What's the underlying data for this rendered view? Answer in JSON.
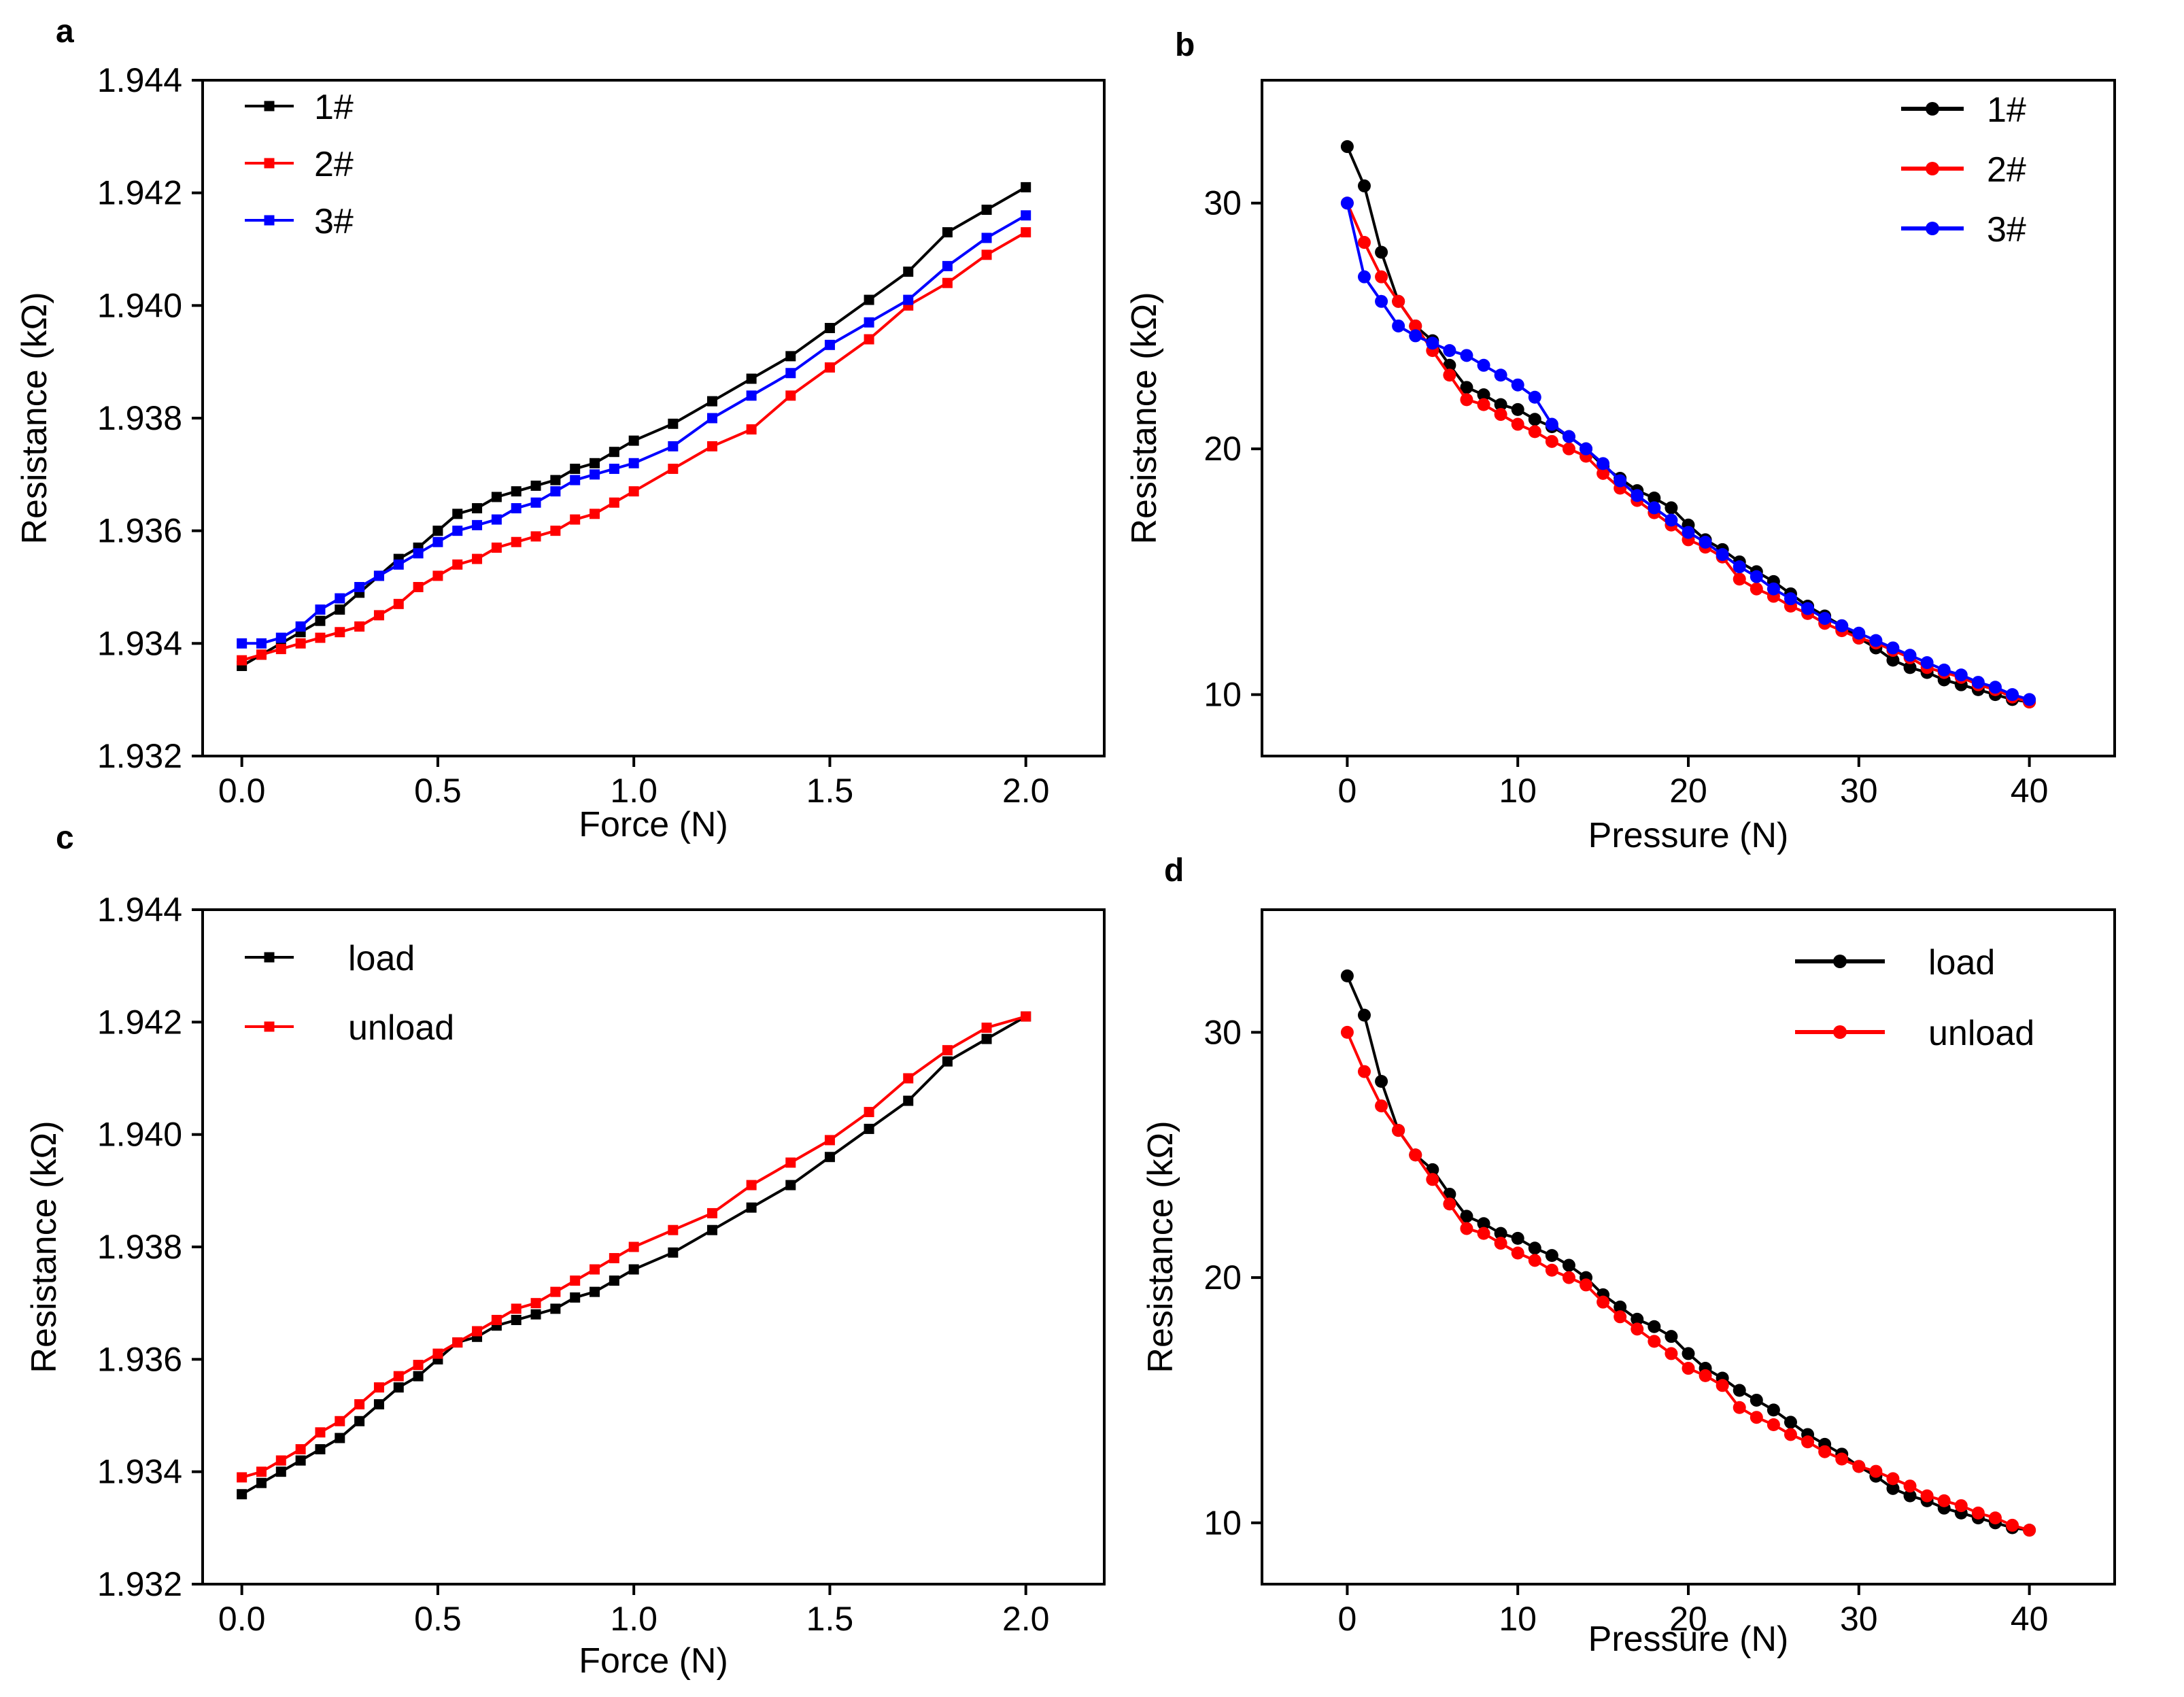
{
  "chart_data": [
    {
      "id": "a",
      "panel_label": "a",
      "type": "line",
      "marker": "square",
      "xlabel": "Force (N)",
      "ylabel": "Resistance (kΩ)",
      "xlim": [
        -0.1,
        2.2
      ],
      "ylim": [
        1.932,
        1.944
      ],
      "xticks": [
        0.0,
        0.5,
        1.0,
        1.5,
        2.0
      ],
      "xtick_labels": [
        "0.0",
        "0.5",
        "1.0",
        "1.5",
        "2.0"
      ],
      "yticks": [
        1.932,
        1.934,
        1.936,
        1.938,
        1.94,
        1.942,
        1.944
      ],
      "ytick_labels": [
        "1.932",
        "1.934",
        "1.936",
        "1.938",
        "1.940",
        "1.942",
        "1.944"
      ],
      "legend_position": "top-left",
      "x": [
        0.0,
        0.05,
        0.1,
        0.15,
        0.2,
        0.25,
        0.3,
        0.35,
        0.4,
        0.45,
        0.5,
        0.55,
        0.6,
        0.65,
        0.7,
        0.75,
        0.8,
        0.85,
        0.9,
        0.95,
        1.0,
        1.1,
        1.2,
        1.3,
        1.4,
        1.5,
        1.6,
        1.7,
        1.8,
        1.9,
        2.0
      ],
      "series": [
        {
          "name": "1#",
          "color": "#000000",
          "values": [
            1.9336,
            1.9338,
            1.934,
            1.9342,
            1.9344,
            1.9346,
            1.9349,
            1.9352,
            1.9355,
            1.9357,
            1.936,
            1.9363,
            1.9364,
            1.9366,
            1.9367,
            1.9368,
            1.9369,
            1.9371,
            1.9372,
            1.9374,
            1.9376,
            1.9379,
            1.9383,
            1.9387,
            1.9391,
            1.9396,
            1.9401,
            1.9406,
            1.9413,
            1.9417,
            1.9421
          ]
        },
        {
          "name": "2#",
          "color": "#ff0000",
          "values": [
            1.9337,
            1.9338,
            1.9339,
            1.934,
            1.9341,
            1.9342,
            1.9343,
            1.9345,
            1.9347,
            1.935,
            1.9352,
            1.9354,
            1.9355,
            1.9357,
            1.9358,
            1.9359,
            1.936,
            1.9362,
            1.9363,
            1.9365,
            1.9367,
            1.9371,
            1.9375,
            1.9378,
            1.9384,
            1.9389,
            1.9394,
            1.94,
            1.9404,
            1.9409,
            1.9413
          ]
        },
        {
          "name": "3#",
          "color": "#0000ff",
          "values": [
            1.934,
            1.934,
            1.9341,
            1.9343,
            1.9346,
            1.9348,
            1.935,
            1.9352,
            1.9354,
            1.9356,
            1.9358,
            1.936,
            1.9361,
            1.9362,
            1.9364,
            1.9365,
            1.9367,
            1.9369,
            1.937,
            1.9371,
            1.9372,
            1.9375,
            1.938,
            1.9384,
            1.9388,
            1.9393,
            1.9397,
            1.9401,
            1.9407,
            1.9412,
            1.9416
          ]
        }
      ]
    },
    {
      "id": "b",
      "panel_label": "b",
      "type": "line",
      "marker": "circle",
      "xlabel": "Pressure (N)",
      "ylabel": "Resistance (kΩ)",
      "xlim": [
        -5,
        45
      ],
      "ylim": [
        7.5,
        35
      ],
      "xticks": [
        0,
        10,
        20,
        30,
        40
      ],
      "xtick_labels": [
        "0",
        "10",
        "20",
        "30",
        "40"
      ],
      "yticks": [
        10,
        20,
        30
      ],
      "ytick_labels": [
        "10",
        "20",
        "30"
      ],
      "legend_position": "top-right",
      "x": [
        0,
        1,
        2,
        3,
        4,
        5,
        6,
        7,
        8,
        9,
        10,
        11,
        12,
        13,
        14,
        15,
        16,
        17,
        18,
        19,
        20,
        21,
        22,
        23,
        24,
        25,
        26,
        27,
        28,
        29,
        30,
        31,
        32,
        33,
        34,
        35,
        36,
        37,
        38,
        39,
        40
      ],
      "series": [
        {
          "name": "1#",
          "color": "#000000",
          "values": [
            32.3,
            30.7,
            28.0,
            26.0,
            25.0,
            24.4,
            23.4,
            22.5,
            22.2,
            21.8,
            21.6,
            21.2,
            20.9,
            20.5,
            20.0,
            19.3,
            18.8,
            18.3,
            18.0,
            17.6,
            16.9,
            16.3,
            15.9,
            15.4,
            15.0,
            14.6,
            14.1,
            13.6,
            13.2,
            12.8,
            12.3,
            11.9,
            11.4,
            11.1,
            10.9,
            10.6,
            10.4,
            10.2,
            10.0,
            9.8,
            9.7
          ]
        },
        {
          "name": "2#",
          "color": "#ff0000",
          "values": [
            30.0,
            28.4,
            27.0,
            26.0,
            25.0,
            24.0,
            23.0,
            22.0,
            21.8,
            21.4,
            21.0,
            20.7,
            20.3,
            20.0,
            19.7,
            19.0,
            18.4,
            17.9,
            17.4,
            16.9,
            16.3,
            16.0,
            15.6,
            14.7,
            14.3,
            14.0,
            13.6,
            13.3,
            12.9,
            12.6,
            12.3,
            12.1,
            11.8,
            11.5,
            11.1,
            10.9,
            10.7,
            10.4,
            10.2,
            9.9,
            9.7
          ]
        },
        {
          "name": "3#",
          "color": "#0000ff",
          "values": [
            30.0,
            27.0,
            26.0,
            25.0,
            24.6,
            24.3,
            24.0,
            23.8,
            23.4,
            23.0,
            22.6,
            22.1,
            21.0,
            20.5,
            20.0,
            19.4,
            18.7,
            18.1,
            17.6,
            17.1,
            16.6,
            16.2,
            15.7,
            15.2,
            14.8,
            14.3,
            13.9,
            13.5,
            13.1,
            12.8,
            12.5,
            12.2,
            11.9,
            11.6,
            11.3,
            11.0,
            10.8,
            10.5,
            10.3,
            10.0,
            9.8
          ]
        }
      ]
    },
    {
      "id": "c",
      "panel_label": "c",
      "type": "line",
      "marker": "square",
      "xlabel": "Force (N)",
      "ylabel": "Resistance (kΩ)",
      "xlim": [
        -0.1,
        2.2
      ],
      "ylim": [
        1.932,
        1.944
      ],
      "xticks": [
        0.0,
        0.5,
        1.0,
        1.5,
        2.0
      ],
      "xtick_labels": [
        "0.0",
        "0.5",
        "1.0",
        "1.5",
        "2.0"
      ],
      "yticks": [
        1.932,
        1.934,
        1.936,
        1.938,
        1.94,
        1.942,
        1.944
      ],
      "ytick_labels": [
        "1.932",
        "1.934",
        "1.936",
        "1.938",
        "1.940",
        "1.942",
        "1.944"
      ],
      "legend_position": "top-left",
      "x": [
        0.0,
        0.05,
        0.1,
        0.15,
        0.2,
        0.25,
        0.3,
        0.35,
        0.4,
        0.45,
        0.5,
        0.55,
        0.6,
        0.65,
        0.7,
        0.75,
        0.8,
        0.85,
        0.9,
        0.95,
        1.0,
        1.1,
        1.2,
        1.3,
        1.4,
        1.5,
        1.6,
        1.7,
        1.8,
        1.9,
        2.0
      ],
      "series": [
        {
          "name": "load",
          "color": "#000000",
          "values": [
            1.9336,
            1.9338,
            1.934,
            1.9342,
            1.9344,
            1.9346,
            1.9349,
            1.9352,
            1.9355,
            1.9357,
            1.936,
            1.9363,
            1.9364,
            1.9366,
            1.9367,
            1.9368,
            1.9369,
            1.9371,
            1.9372,
            1.9374,
            1.9376,
            1.9379,
            1.9383,
            1.9387,
            1.9391,
            1.9396,
            1.9401,
            1.9406,
            1.9413,
            1.9417,
            1.9421
          ]
        },
        {
          "name": "unload",
          "color": "#ff0000",
          "values": [
            1.9339,
            1.934,
            1.9342,
            1.9344,
            1.9347,
            1.9349,
            1.9352,
            1.9355,
            1.9357,
            1.9359,
            1.9361,
            1.9363,
            1.9365,
            1.9367,
            1.9369,
            1.937,
            1.9372,
            1.9374,
            1.9376,
            1.9378,
            1.938,
            1.9383,
            1.9386,
            1.9391,
            1.9395,
            1.9399,
            1.9404,
            1.941,
            1.9415,
            1.9419,
            1.9421
          ]
        }
      ]
    },
    {
      "id": "d",
      "panel_label": "d",
      "type": "line",
      "marker": "circle",
      "xlabel": "Pressure (N)",
      "ylabel": "Resistance (kΩ)",
      "xlim": [
        -5,
        45
      ],
      "ylim": [
        7.5,
        35
      ],
      "xticks": [
        0,
        10,
        20,
        30,
        40
      ],
      "xtick_labels": [
        "0",
        "10",
        "20",
        "30",
        "40"
      ],
      "yticks": [
        10,
        20,
        30
      ],
      "ytick_labels": [
        "10",
        "20",
        "30"
      ],
      "legend_position": "top-right",
      "x": [
        0,
        1,
        2,
        3,
        4,
        5,
        6,
        7,
        8,
        9,
        10,
        11,
        12,
        13,
        14,
        15,
        16,
        17,
        18,
        19,
        20,
        21,
        22,
        23,
        24,
        25,
        26,
        27,
        28,
        29,
        30,
        31,
        32,
        33,
        34,
        35,
        36,
        37,
        38,
        39,
        40
      ],
      "series": [
        {
          "name": "load",
          "color": "#000000",
          "values": [
            32.3,
            30.7,
            28.0,
            26.0,
            25.0,
            24.4,
            23.4,
            22.5,
            22.2,
            21.8,
            21.6,
            21.2,
            20.9,
            20.5,
            20.0,
            19.3,
            18.8,
            18.3,
            18.0,
            17.6,
            16.9,
            16.3,
            15.9,
            15.4,
            15.0,
            14.6,
            14.1,
            13.6,
            13.2,
            12.8,
            12.3,
            11.9,
            11.4,
            11.1,
            10.9,
            10.6,
            10.4,
            10.2,
            10.0,
            9.8,
            9.7
          ]
        },
        {
          "name": "unload",
          "color": "#ff0000",
          "values": [
            30.0,
            28.4,
            27.0,
            26.0,
            25.0,
            24.0,
            23.0,
            22.0,
            21.8,
            21.4,
            21.0,
            20.7,
            20.3,
            20.0,
            19.7,
            19.0,
            18.4,
            17.9,
            17.4,
            16.9,
            16.3,
            16.0,
            15.6,
            14.7,
            14.3,
            14.0,
            13.6,
            13.3,
            12.9,
            12.6,
            12.3,
            12.1,
            11.8,
            11.5,
            11.1,
            10.9,
            10.7,
            10.4,
            10.2,
            9.9,
            9.7
          ]
        }
      ]
    }
  ]
}
